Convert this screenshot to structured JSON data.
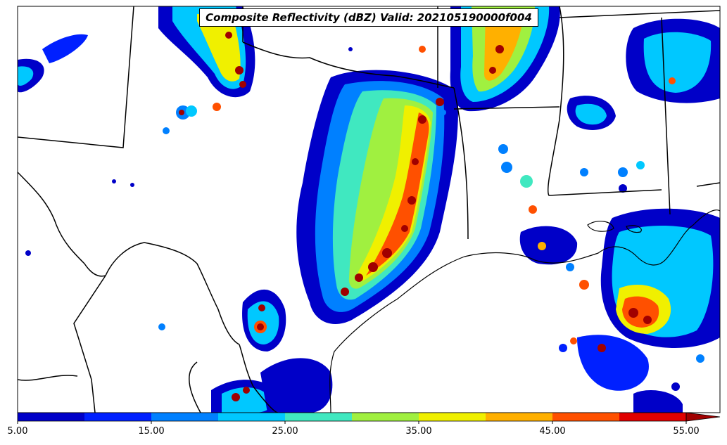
{
  "map": {
    "title": "Composite Reflectivity (dBZ) Valid: 202105190000f004"
  },
  "colorbar": {
    "bins": [
      5,
      10,
      15,
      20,
      25,
      30,
      35,
      40,
      45,
      50,
      55
    ],
    "colors": [
      "#0000c8",
      "#0020ff",
      "#0080ff",
      "#00c8ff",
      "#40e8c0",
      "#a0f040",
      "#f0f000",
      "#ffb000",
      "#ff5000",
      "#e00000",
      "#a00000"
    ],
    "extend": "max",
    "tick_labels": [
      "5.00",
      "15.00",
      "25.00",
      "35.00",
      "45.00",
      "55.00"
    ]
  }
}
